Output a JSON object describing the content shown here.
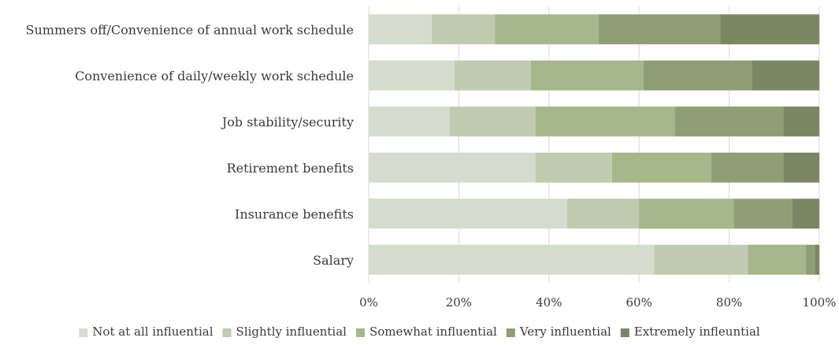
{
  "chart_data": {
    "type": "bar",
    "orientation": "horizontal",
    "stacked": "percent",
    "categories": [
      "Summers off/Convenience of annual work schedule",
      "Convenience of daily/weekly work schedule",
      "Job stability/security",
      "Retirement benefits",
      "Insurance benefits",
      "Salary"
    ],
    "series": [
      {
        "name": "Not at all influential",
        "color": "#d6dccd",
        "values": [
          14,
          19,
          18,
          37,
          44,
          64
        ]
      },
      {
        "name": "Slightly influential",
        "color": "#c1cbaf",
        "values": [
          14,
          17,
          19,
          17,
          16,
          21
        ]
      },
      {
        "name": "Somewhat influential",
        "color": "#a6b78b",
        "values": [
          23,
          25,
          31,
          22,
          21,
          13
        ]
      },
      {
        "name": "Very influential",
        "color": "#8f9e74",
        "values": [
          27,
          24,
          24,
          16,
          13,
          2
        ]
      },
      {
        "name": "Extremely infleuntial",
        "color": "#7b8663",
        "values": [
          22,
          15,
          8,
          8,
          6,
          1
        ]
      }
    ],
    "xlim": [
      0,
      100
    ],
    "x_ticks": [
      "0%",
      "20%",
      "40%",
      "60%",
      "80%",
      "100%"
    ],
    "grid": true,
    "legend_position": "bottom"
  }
}
